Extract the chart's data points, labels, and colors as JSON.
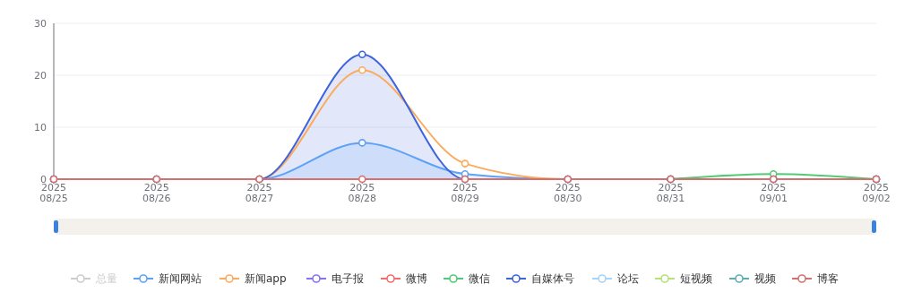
{
  "chart_data": {
    "type": "line",
    "categories": [
      "2025\n08/25",
      "2025\n08/26",
      "2025\n08/27",
      "2025\n08/28",
      "2025\n08/29",
      "2025\n08/30",
      "2025\n08/31",
      "2025\n09/01",
      "2025\n09/02"
    ],
    "ylim": [
      0,
      30
    ],
    "yticks": [
      0,
      10,
      20,
      30
    ],
    "grid": "y",
    "legend": "bottom",
    "marker": "circle",
    "series": [
      {
        "name": "总量",
        "color": "#cccccc",
        "values": [
          null,
          null,
          null,
          null,
          null,
          null,
          null,
          null,
          null
        ]
      },
      {
        "name": "新闻网站",
        "type": "area",
        "color": "#5ea2f8",
        "values": [
          0,
          0,
          0,
          7,
          1,
          0,
          0,
          0,
          0
        ]
      },
      {
        "name": "新闻app",
        "color": "#fbab5c",
        "values": [
          0,
          0,
          0,
          21,
          3,
          0,
          0,
          0,
          0
        ]
      },
      {
        "name": "电子报",
        "color": "#8572f2",
        "values": [
          null,
          null,
          null,
          null,
          null,
          null,
          null,
          null,
          null
        ]
      },
      {
        "name": "微博",
        "color": "#f56c6c",
        "values": [
          null,
          null,
          null,
          null,
          null,
          null,
          null,
          null,
          null
        ]
      },
      {
        "name": "微信",
        "color": "#55c876",
        "values": [
          null,
          null,
          null,
          null,
          null,
          null,
          0,
          1,
          0
        ]
      },
      {
        "name": "自媒体号",
        "type": "area",
        "color": "#3e63dd",
        "values": [
          0,
          0,
          0,
          24,
          0,
          0,
          0,
          0,
          0
        ]
      },
      {
        "name": "论坛",
        "color": "#a5d5fa",
        "values": [
          null,
          null,
          null,
          null,
          null,
          null,
          null,
          null,
          null
        ]
      },
      {
        "name": "短视频",
        "color": "#b5e27a",
        "values": [
          null,
          null,
          null,
          null,
          null,
          null,
          null,
          null,
          null
        ]
      },
      {
        "name": "视频",
        "color": "#5aafb5",
        "values": [
          null,
          null,
          null,
          null,
          null,
          null,
          null,
          null,
          null
        ]
      },
      {
        "name": "博客",
        "color": "#d4716f",
        "values": [
          0,
          0,
          0,
          0,
          0,
          0,
          0,
          0,
          0
        ]
      }
    ]
  }
}
